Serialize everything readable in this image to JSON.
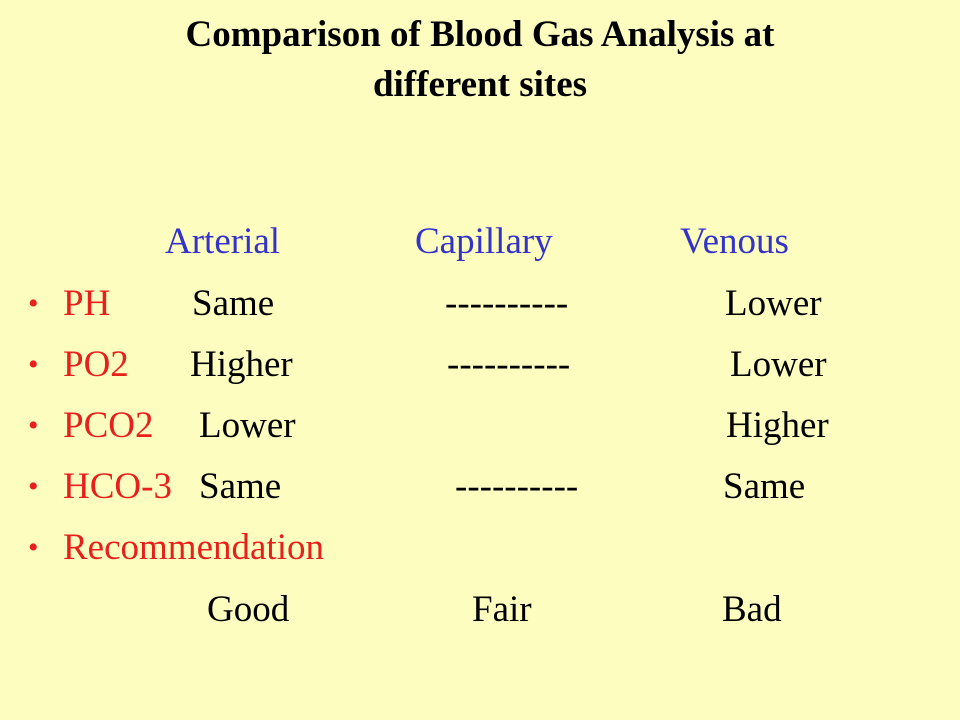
{
  "title": {
    "line1": "Comparison of Blood Gas Analysis at",
    "line2": "different sites"
  },
  "columns": [
    "Arterial",
    "Capillary",
    "Venous"
  ],
  "bullet": "•",
  "rows": [
    {
      "label": "PH",
      "arterial": "Same",
      "capillary": "----------",
      "venous": "Lower"
    },
    {
      "label": "PO2",
      "arterial": "Higher",
      "capillary": "----------",
      "venous": "Lower"
    },
    {
      "label": "PCO2",
      "arterial": "Lower",
      "capillary": "",
      "venous": "Higher"
    },
    {
      "label": "HCO-3",
      "arterial": "Same",
      "capillary": "----------",
      "venous": "Same"
    }
  ],
  "recommendation": {
    "label": "Recommendation",
    "arterial": "Good",
    "capillary": "Fair",
    "venous": "Bad"
  },
  "colors": {
    "background": "#fdfdc0",
    "header": "#3333cc",
    "label": "#e8201c",
    "text": "#000000"
  }
}
